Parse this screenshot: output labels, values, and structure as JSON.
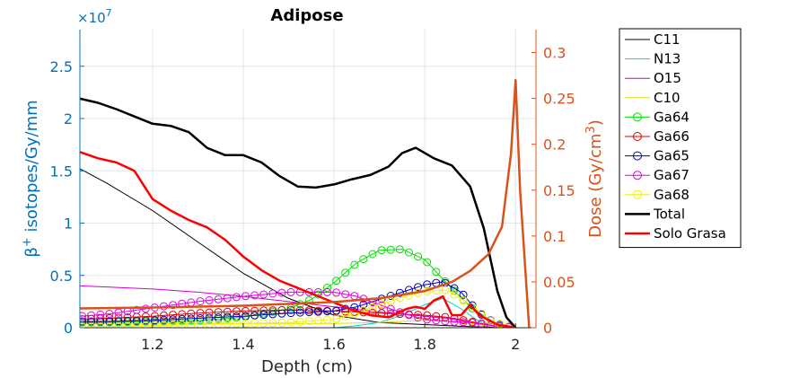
{
  "chart_data": {
    "type": "line",
    "title": "Adipose",
    "xlabel": "Depth (cm)",
    "ylabel_left": "β+ isotopes/Gy/mm",
    "ylabel_left_base": "β",
    "ylabel_left_sup": "+",
    "ylabel_left_rest": " isotopes/Gy/mm",
    "ylabel_right": "Dose (Gy/cm³)",
    "ylabel_right_base": "Dose (Gy/cm",
    "ylabel_right_sup": "3",
    "ylabel_right_end": ")",
    "left_exponent": "×10",
    "left_exponent_power": "7",
    "xlim": [
      1.04,
      2.045
    ],
    "ylim_left": [
      0,
      2.85
    ],
    "ylim_right": [
      0,
      0.325
    ],
    "x_ticks": [
      1.2,
      1.4,
      1.6,
      1.8,
      2
    ],
    "x_tick_labels": [
      "1.2",
      "1.4",
      "1.6",
      "1.8",
      "2"
    ],
    "y_left_ticks": [
      0,
      0.5,
      1,
      1.5,
      2,
      2.5
    ],
    "y_left_tick_labels": [
      "0",
      "0.5",
      "1",
      "1.5",
      "2",
      "2.5"
    ],
    "y_right_ticks": [
      0,
      0.05,
      0.1,
      0.15,
      0.2,
      0.25,
      0.3
    ],
    "y_right_tick_labels": [
      "0",
      "0.05",
      "0.1",
      "0.15",
      "0.2",
      "0.25",
      "0.3"
    ],
    "grid": true,
    "legend_position": "outside-right",
    "series": [
      {
        "name": "C11",
        "axis": "left",
        "color": "#000000",
        "width": 1,
        "marker": "none",
        "x": [
          1.04,
          1.1,
          1.2,
          1.3,
          1.4,
          1.5,
          1.6,
          1.7,
          1.8,
          1.9,
          1.95,
          2.0
        ],
        "y": [
          1.52,
          1.38,
          1.12,
          0.82,
          0.52,
          0.28,
          0.12,
          0.05,
          0.03,
          0.01,
          0.005,
          0.0
        ]
      },
      {
        "name": "N13",
        "axis": "left",
        "color": "#00D0D0",
        "width": 1,
        "marker": "none",
        "x": [
          1.04,
          1.2,
          1.4,
          1.6,
          1.65,
          1.7,
          1.75,
          1.8,
          1.84,
          1.88,
          1.92,
          1.96,
          2.0
        ],
        "y": [
          0.0,
          0.0,
          0.0,
          0.0,
          0.02,
          0.05,
          0.12,
          0.22,
          0.28,
          0.18,
          0.06,
          0.01,
          0.0
        ]
      },
      {
        "name": "O15",
        "axis": "left",
        "color": "#D000D0",
        "width": 1,
        "marker": "none",
        "x": [
          1.04,
          1.1,
          1.2,
          1.3,
          1.4,
          1.5,
          1.6,
          1.7,
          1.8,
          1.85,
          1.9,
          1.95,
          2.0
        ],
        "y": [
          0.4,
          0.39,
          0.37,
          0.34,
          0.3,
          0.25,
          0.2,
          0.15,
          0.11,
          0.09,
          0.05,
          0.02,
          0.0
        ]
      },
      {
        "name": "C10",
        "axis": "left",
        "color": "#E0E000",
        "width": 1,
        "marker": "none",
        "x": [
          1.04,
          1.2,
          1.4,
          1.6,
          1.7,
          1.8,
          1.85,
          1.9,
          1.95,
          2.0
        ],
        "y": [
          0.04,
          0.04,
          0.04,
          0.04,
          0.05,
          0.07,
          0.06,
          0.04,
          0.01,
          0.0
        ]
      },
      {
        "name": "Ga64",
        "axis": "left",
        "color": "#00E000",
        "width": 1,
        "marker": "circle",
        "x": [
          1.04,
          1.1,
          1.2,
          1.3,
          1.4,
          1.5,
          1.55,
          1.6,
          1.65,
          1.7,
          1.75,
          1.8,
          1.85,
          1.9,
          1.95,
          2.0
        ],
        "y": [
          0.05,
          0.05,
          0.06,
          0.07,
          0.1,
          0.18,
          0.27,
          0.43,
          0.62,
          0.74,
          0.75,
          0.65,
          0.42,
          0.2,
          0.05,
          0.0
        ]
      },
      {
        "name": "Ga66",
        "axis": "left",
        "color": "#E00000",
        "width": 1,
        "marker": "circle",
        "x": [
          1.04,
          1.1,
          1.2,
          1.3,
          1.4,
          1.5,
          1.6,
          1.7,
          1.8,
          1.85,
          1.9,
          1.95,
          2.0
        ],
        "y": [
          0.08,
          0.09,
          0.11,
          0.14,
          0.16,
          0.17,
          0.16,
          0.14,
          0.12,
          0.1,
          0.06,
          0.02,
          0.0
        ]
      },
      {
        "name": "Ga65",
        "axis": "left",
        "color": "#0000C0",
        "width": 1,
        "marker": "circle",
        "x": [
          1.04,
          1.1,
          1.2,
          1.3,
          1.4,
          1.5,
          1.6,
          1.65,
          1.7,
          1.75,
          1.8,
          1.84,
          1.88,
          1.92,
          1.96,
          2.0
        ],
        "y": [
          0.06,
          0.06,
          0.07,
          0.09,
          0.11,
          0.14,
          0.16,
          0.2,
          0.27,
          0.34,
          0.41,
          0.44,
          0.34,
          0.14,
          0.03,
          0.0
        ]
      },
      {
        "name": "Ga67",
        "axis": "left",
        "color": "#E000E0",
        "width": 1,
        "marker": "circle",
        "x": [
          1.04,
          1.1,
          1.2,
          1.3,
          1.4,
          1.5,
          1.6,
          1.65,
          1.7,
          1.75,
          1.8,
          1.85,
          1.9,
          1.95,
          2.0
        ],
        "y": [
          0.11,
          0.13,
          0.19,
          0.25,
          0.3,
          0.34,
          0.34,
          0.3,
          0.22,
          0.14,
          0.08,
          0.06,
          0.05,
          0.02,
          0.0
        ]
      },
      {
        "name": "Ga68",
        "axis": "left",
        "color": "#F0F000",
        "width": 1,
        "marker": "circle",
        "x": [
          1.04,
          1.1,
          1.2,
          1.3,
          1.4,
          1.5,
          1.6,
          1.65,
          1.7,
          1.75,
          1.8,
          1.85,
          1.9,
          1.95,
          2.0
        ],
        "y": [
          0.01,
          0.01,
          0.02,
          0.03,
          0.04,
          0.05,
          0.08,
          0.14,
          0.22,
          0.29,
          0.35,
          0.36,
          0.22,
          0.05,
          0.0
        ]
      },
      {
        "name": "Total",
        "axis": "left",
        "color": "#000000",
        "width": 2.5,
        "marker": "none",
        "x": [
          1.04,
          1.08,
          1.12,
          1.16,
          1.2,
          1.24,
          1.28,
          1.32,
          1.36,
          1.4,
          1.44,
          1.48,
          1.52,
          1.56,
          1.6,
          1.64,
          1.68,
          1.72,
          1.75,
          1.78,
          1.82,
          1.86,
          1.9,
          1.93,
          1.96,
          1.98,
          2.0
        ],
        "y": [
          2.19,
          2.15,
          2.09,
          2.02,
          1.95,
          1.93,
          1.87,
          1.72,
          1.65,
          1.65,
          1.58,
          1.45,
          1.35,
          1.34,
          1.37,
          1.42,
          1.46,
          1.54,
          1.67,
          1.72,
          1.62,
          1.55,
          1.35,
          0.95,
          0.35,
          0.1,
          0.0
        ]
      },
      {
        "name": "Solo Grasa",
        "axis": "left",
        "color": "#FF0000",
        "width": 2.5,
        "marker": "none",
        "x": [
          1.04,
          1.08,
          1.12,
          1.16,
          1.2,
          1.24,
          1.28,
          1.32,
          1.36,
          1.4,
          1.44,
          1.48,
          1.52,
          1.56,
          1.6,
          1.64,
          1.68,
          1.72,
          1.76,
          1.78,
          1.8,
          1.82,
          1.84,
          1.86,
          1.88,
          1.9,
          1.92,
          1.96,
          2.0
        ],
        "y": [
          1.68,
          1.62,
          1.58,
          1.5,
          1.23,
          1.12,
          1.03,
          0.96,
          0.84,
          0.68,
          0.55,
          0.45,
          0.38,
          0.31,
          0.24,
          0.17,
          0.12,
          0.1,
          0.18,
          0.2,
          0.18,
          0.26,
          0.3,
          0.12,
          0.12,
          0.22,
          0.12,
          0.03,
          0.0
        ]
      },
      {
        "name": "Dose",
        "axis": "right",
        "color": "#D95319",
        "width": 2.5,
        "marker": "none",
        "legend": false,
        "x": [
          1.04,
          1.2,
          1.4,
          1.6,
          1.7,
          1.8,
          1.86,
          1.9,
          1.94,
          1.97,
          1.99,
          2.0,
          2.01,
          2.03
        ],
        "y": [
          0.021,
          0.022,
          0.024,
          0.028,
          0.032,
          0.04,
          0.05,
          0.062,
          0.08,
          0.11,
          0.19,
          0.27,
          0.15,
          0.0
        ]
      }
    ]
  }
}
